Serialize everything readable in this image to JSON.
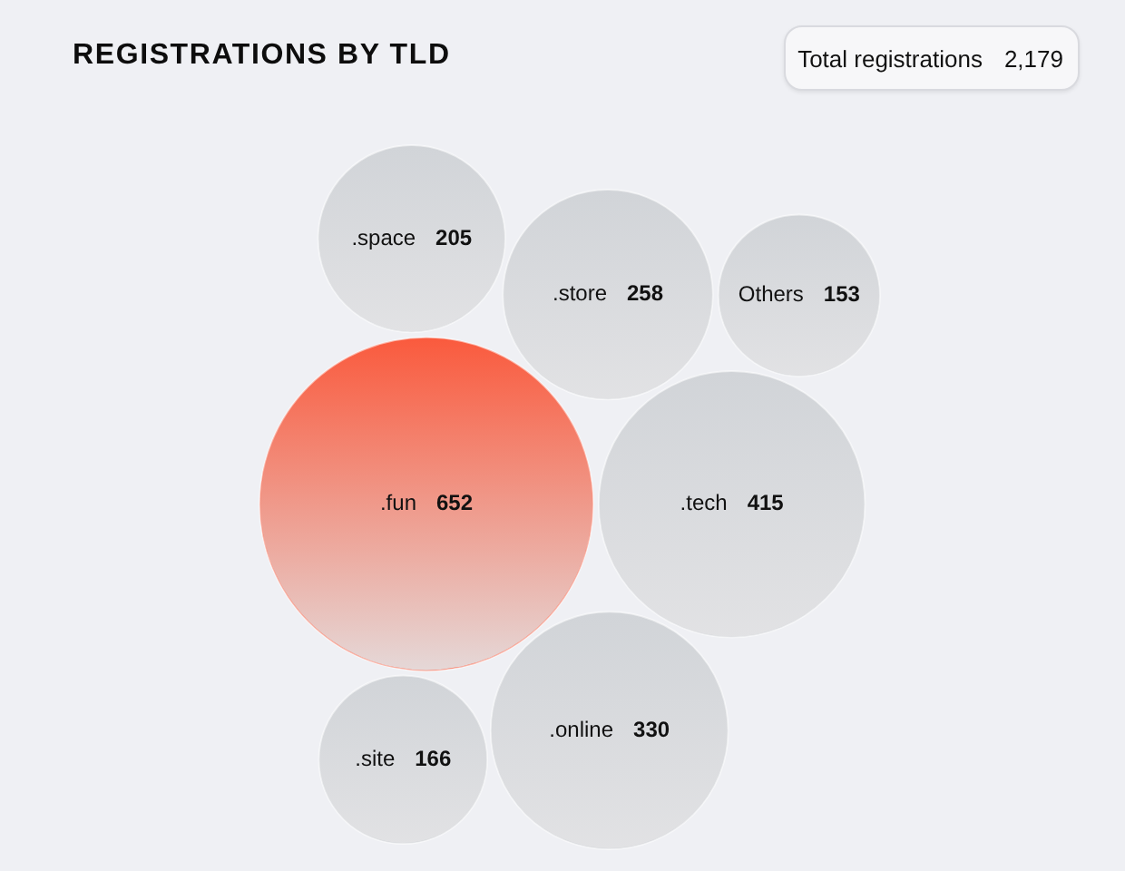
{
  "chart_data": {
    "type": "other",
    "title": "REGISTRATIONS BY TLD",
    "categories": [
      ".fun",
      ".tech",
      ".online",
      ".store",
      ".space",
      ".site",
      "Others"
    ],
    "values": [
      652,
      415,
      330,
      258,
      205,
      166,
      153
    ],
    "colors": [
      "#fa5a3d",
      "#d1d4d8",
      "#d1d4d8",
      "#d1d4d8",
      "#d1d4d8",
      "#d1d4d8",
      "#d1d4d8"
    ],
    "data_labels": true,
    "annotations": [
      "Total registrations 2,179"
    ]
  }
}
